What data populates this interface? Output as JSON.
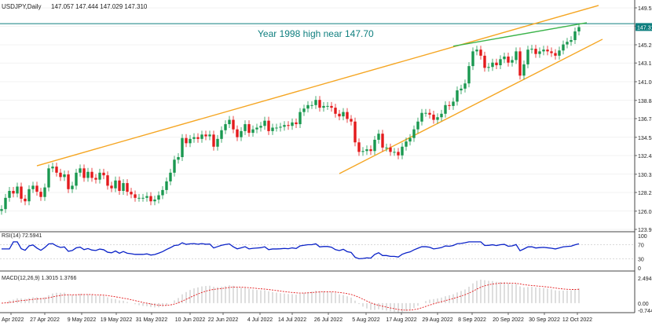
{
  "header": {
    "symbol_label": "USDJPY,Daily",
    "ohlc_values": "147.057 147.444 147.029 147.310"
  },
  "annotation": {
    "text": "Year 1998 high near 147.70"
  },
  "colors": {
    "bull": "#1a9850",
    "bear": "#e31a1c",
    "wedge_lines": "#f5a623",
    "upper_green_line": "#3cb44b",
    "horizontal_level": "#0f7f7f",
    "annotation_text": "#0f7f7f",
    "rsi_line": "#0a22c8",
    "macd_signal": "#e31a1c",
    "macd_hist": "#c8c8c8",
    "price_tag": "#0f7f7f",
    "grid": "#e6e6e6"
  },
  "chart_data": [
    {
      "type": "candlestick",
      "title": "USDJPY,Daily",
      "y_ticks": [
        "149.52",
        "147.41",
        "145.26",
        "143.16",
        "141.00",
        "138.84",
        "136.74",
        "134.58",
        "132.48",
        "130.32",
        "128.22",
        "126.06",
        "123.96"
      ],
      "ylim": [
        123.96,
        149.52
      ],
      "x_ticks": [
        "Apr 2022",
        "27 Apr 2022",
        "9 May 2022",
        "19 May 2022",
        "31 May 2022",
        "10 Jun 2022",
        "22 Jun 2022",
        "4 Jul 2022",
        "14 Jul 2022",
        "26 Jul 2022",
        "5 Aug 2022",
        "17 Aug 2022",
        "29 Aug 2022",
        "8 Sep 2022",
        "20 Sep 2022",
        "30 Sep 2022",
        "12 Oct 2022"
      ],
      "last_price": "147.31",
      "horizontal_level": 147.7,
      "trendlines": [
        {
          "name": "upper-wedge",
          "from": [
            "27 Apr 2022",
            131.3
          ],
          "to": [
            "12 Oct 2022",
            149.8
          ]
        },
        {
          "name": "lower-wedge",
          "from": [
            "1 Aug 2022",
            130.4
          ],
          "to": [
            "12 Oct 2022",
            145.9
          ]
        },
        {
          "name": "green-upper",
          "from": [
            "2 Sep 2022",
            145.1
          ],
          "to": [
            "13 Oct 2022",
            147.8
          ]
        }
      ],
      "annotations": [
        "Year 1998 high near 147.70"
      ],
      "candles_close": [
        126.3,
        127.6,
        128.4,
        128.1,
        128.9,
        127.5,
        127.2,
        128.6,
        129.0,
        128.3,
        127.7,
        128.8,
        131.0,
        131.2,
        130.5,
        130.0,
        130.3,
        128.6,
        129.0,
        130.5,
        131.0,
        129.9,
        130.6,
        129.9,
        129.7,
        130.5,
        130.2,
        129.0,
        128.7,
        129.6,
        128.4,
        129.3,
        128.3,
        128.0,
        127.6,
        127.6,
        127.6,
        127.8,
        127.2,
        127.4,
        127.9,
        128.5,
        129.5,
        130.5,
        132.0,
        132.3,
        134.5,
        133.9,
        134.4,
        134.6,
        134.4,
        134.9,
        134.7,
        134.9,
        133.5,
        134.4,
        135.4,
        136.1,
        136.6,
        135.5,
        134.6,
        135.3,
        136.1,
        135.1,
        135.5,
        135.7,
        135.9,
        136.5,
        135.3,
        135.7,
        135.7,
        135.8,
        136.0,
        135.9,
        136.3,
        136.1,
        137.5,
        137.9,
        138.3,
        138.3,
        138.9,
        138.0,
        138.2,
        138.2,
        138.0,
        137.3,
        137.0,
        137.5,
        136.7,
        136.4,
        134.0,
        132.9,
        133.0,
        133.2,
        133.0,
        134.3,
        135.0,
        133.4,
        133.4,
        132.9,
        132.9,
        132.5,
        133.5,
        134.1,
        134.5,
        135.5,
        136.4,
        137.4,
        137.4,
        137.2,
        136.6,
        136.9,
        137.3,
        138.3,
        138.2,
        138.7,
        140.0,
        140.2,
        140.8,
        142.8,
        144.5,
        144.7,
        144.0,
        142.6,
        142.7,
        143.2,
        142.9,
        143.6,
        143.9,
        143.2,
        143.5,
        144.5,
        141.7,
        143.0,
        144.7,
        144.8,
        144.2,
        144.5,
        144.7,
        144.5,
        144.3,
        144.0,
        144.6,
        145.3,
        145.6,
        145.8,
        146.8,
        147.3
      ]
    },
    {
      "type": "line",
      "title": "RSI(14) 72.5941",
      "y_ticks": [
        "100",
        "70",
        "30",
        "0"
      ],
      "ylim": [
        0,
        100
      ],
      "value_last": 72.5941
    },
    {
      "type": "bar+line",
      "title": "MACD(12,26,9) 1.3015 1.3766",
      "y_ticks": [
        "2.4945",
        "0.00",
        "-0.7444"
      ],
      "ylim": [
        -0.7444,
        2.4945
      ],
      "series": [
        {
          "name": "MACD",
          "last": 1.3015
        },
        {
          "name": "Signal",
          "last": 1.3766
        }
      ]
    }
  ]
}
